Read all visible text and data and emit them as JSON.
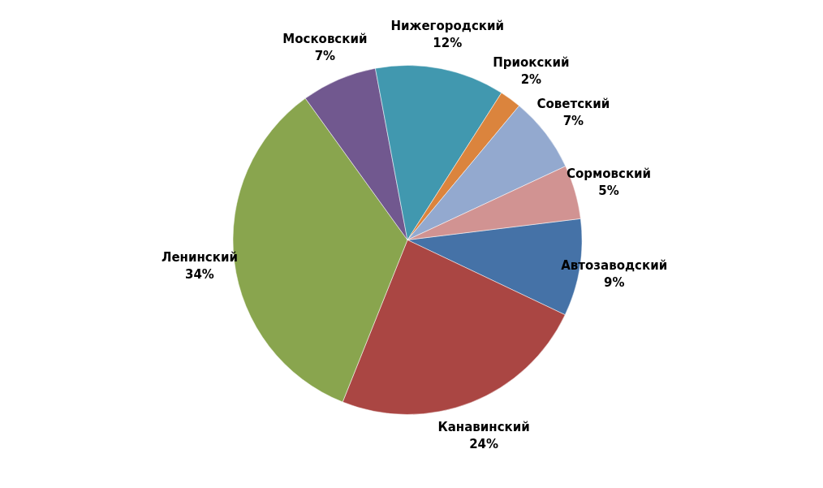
{
  "chart_data": {
    "type": "pie",
    "categories": [
      "Автозаводский",
      "Канавинский",
      "Ленинский",
      "Московский",
      "Нижегородский",
      "Приокский",
      "Советский",
      "Сормовский"
    ],
    "values": [
      9,
      24,
      34,
      7,
      12,
      2,
      7,
      5
    ],
    "value_labels": [
      "9%",
      "24%",
      "34%",
      "7%",
      "12%",
      "2%",
      "7%",
      "5%"
    ],
    "colors": [
      "#4572a7",
      "#aa4643",
      "#89a54e",
      "#71588f",
      "#4198af",
      "#db843d",
      "#93a9cf",
      "#d19392"
    ],
    "legend": false
  }
}
